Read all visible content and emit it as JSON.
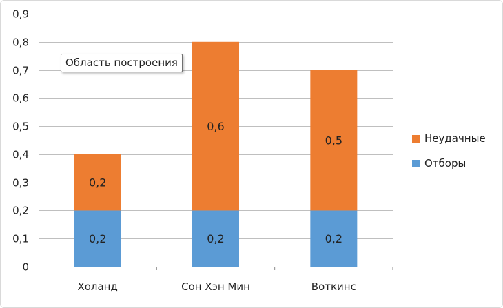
{
  "chart_data": {
    "type": "bar",
    "stacked": true,
    "categories": [
      "Холанд",
      "Сон Хэн Мин",
      "Воткинс"
    ],
    "series": [
      {
        "name": "Отборы",
        "values": [
          0.2,
          0.2,
          0.2
        ],
        "color": "#5b9bd5",
        "labels": [
          "0,2",
          "0,2",
          "0,2"
        ]
      },
      {
        "name": "Неудачные",
        "values": [
          0.2,
          0.6,
          0.5
        ],
        "color": "#ed7d31",
        "labels": [
          "0,2",
          "0,6",
          "0,5"
        ]
      }
    ],
    "ylim": [
      0,
      0.9
    ],
    "yticks": [
      0,
      0.1,
      0.2,
      0.3,
      0.4,
      0.5,
      0.6,
      0.7,
      0.8,
      0.9
    ],
    "ytick_labels": [
      "0",
      "0,1",
      "0,2",
      "0,3",
      "0,4",
      "0,5",
      "0,6",
      "0,7",
      "0,8",
      "0,9"
    ],
    "grid": true,
    "legend_position": "right",
    "legend_order": [
      "Неудачные",
      "Отборы"
    ],
    "tooltip": "Область построения"
  }
}
